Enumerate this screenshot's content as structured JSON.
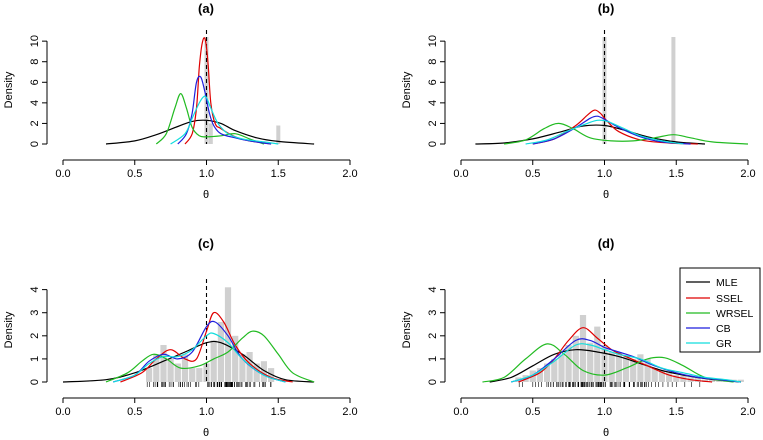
{
  "chart_data": [
    {
      "type": "line",
      "title": "(a)",
      "xlabel": "θ",
      "ylabel": "Density",
      "xlim": [
        0.0,
        2.0
      ],
      "ylim": [
        0,
        10.5
      ],
      "xticks": [
        "0.0",
        "0.5",
        "1.0",
        "1.5",
        "2.0"
      ],
      "yticks": [
        "0",
        "2",
        "4",
        "6",
        "8",
        "10"
      ],
      "reference_line_x": 1.0,
      "histogram": {
        "x": [
          1.0,
          1.03,
          1.5
        ],
        "heights": [
          10.4,
          2.0,
          1.8
        ]
      },
      "series": [
        {
          "name": "MLE",
          "x": [
            0.3,
            0.5,
            0.65,
            0.8,
            0.9,
            1.0,
            1.1,
            1.2,
            1.35,
            1.5,
            1.75
          ],
          "values": [
            0.0,
            0.3,
            0.9,
            1.7,
            2.2,
            2.3,
            2.0,
            1.3,
            0.6,
            0.25,
            0.0
          ]
        },
        {
          "name": "SSEL",
          "x": [
            0.85,
            0.9,
            0.93,
            0.95,
            0.97,
            0.99,
            1.01,
            1.03,
            1.06,
            1.1,
            1.2,
            1.3,
            1.45
          ],
          "values": [
            0.0,
            1.0,
            3.5,
            7.5,
            9.8,
            10.2,
            8.0,
            4.0,
            2.0,
            1.5,
            0.7,
            0.3,
            0.0
          ]
        },
        {
          "name": "WRSEL",
          "x": [
            0.65,
            0.72,
            0.78,
            0.82,
            0.86,
            0.9,
            0.95,
            1.0,
            1.1,
            1.2,
            1.3,
            1.4
          ],
          "values": [
            0.0,
            1.0,
            3.5,
            4.9,
            3.5,
            1.6,
            0.8,
            0.7,
            0.8,
            1.0,
            0.5,
            0.0
          ]
        },
        {
          "name": "CB",
          "x": [
            0.8,
            0.86,
            0.9,
            0.93,
            0.96,
            0.99,
            1.02,
            1.05,
            1.1,
            1.2,
            1.3,
            1.45
          ],
          "values": [
            0.0,
            1.0,
            3.0,
            6.0,
            6.5,
            5.0,
            3.0,
            1.8,
            1.0,
            0.6,
            0.3,
            0.0
          ]
        },
        {
          "name": "GR",
          "x": [
            0.75,
            0.85,
            0.9,
            0.95,
            0.98,
            1.0,
            1.03,
            1.08,
            1.15,
            1.25,
            1.4,
            1.5
          ],
          "values": [
            0.0,
            1.0,
            2.5,
            4.0,
            4.6,
            4.5,
            3.5,
            2.0,
            1.0,
            0.5,
            0.2,
            0.0
          ]
        }
      ]
    },
    {
      "type": "line",
      "title": "(b)",
      "xlabel": "θ",
      "ylabel": "Density",
      "xlim": [
        0.0,
        2.0
      ],
      "ylim": [
        0,
        10.5
      ],
      "xticks": [
        "0.0",
        "0.5",
        "1.0",
        "1.5",
        "2.0"
      ],
      "yticks": [
        "0",
        "2",
        "4",
        "6",
        "8",
        "10"
      ],
      "reference_line_x": 1.0,
      "histogram": {
        "x": [
          1.0,
          1.48
        ],
        "heights": [
          10.4,
          10.4
        ]
      },
      "series": [
        {
          "name": "MLE",
          "x": [
            0.1,
            0.3,
            0.5,
            0.7,
            0.85,
            1.0,
            1.15,
            1.3,
            1.5,
            1.7
          ],
          "values": [
            0.0,
            0.1,
            0.5,
            1.2,
            1.75,
            1.8,
            1.3,
            0.7,
            0.2,
            0.0
          ]
        },
        {
          "name": "SSEL",
          "x": [
            0.5,
            0.65,
            0.8,
            0.88,
            0.93,
            0.97,
            1.02,
            1.1,
            1.25,
            1.45,
            1.65
          ],
          "values": [
            0.0,
            0.5,
            1.8,
            2.8,
            3.3,
            3.0,
            2.2,
            1.2,
            0.4,
            0.1,
            0.0
          ]
        },
        {
          "name": "WRSEL",
          "x": [
            0.3,
            0.45,
            0.58,
            0.68,
            0.78,
            0.9,
            1.05,
            1.2,
            1.35,
            1.48,
            1.6,
            1.75,
            2.0
          ],
          "values": [
            0.0,
            0.4,
            1.5,
            2.0,
            1.5,
            0.6,
            0.3,
            0.3,
            0.6,
            0.9,
            0.6,
            0.2,
            0.0
          ]
        },
        {
          "name": "CB",
          "x": [
            0.5,
            0.65,
            0.8,
            0.9,
            0.95,
            1.0,
            1.1,
            1.25,
            1.4,
            1.6
          ],
          "values": [
            0.0,
            0.5,
            1.6,
            2.5,
            2.7,
            2.4,
            1.6,
            0.7,
            0.2,
            0.0
          ]
        },
        {
          "name": "GR",
          "x": [
            0.45,
            0.6,
            0.75,
            0.88,
            0.95,
            1.02,
            1.12,
            1.25,
            1.4,
            1.55
          ],
          "values": [
            0.0,
            0.4,
            1.3,
            2.0,
            2.3,
            2.2,
            1.6,
            0.8,
            0.3,
            0.0
          ]
        }
      ]
    },
    {
      "type": "line",
      "title": "(c)",
      "xlabel": "θ",
      "ylabel": "Density",
      "xlim": [
        0.0,
        2.0
      ],
      "ylim": [
        0,
        4.2
      ],
      "xticks": [
        "0.0",
        "0.5",
        "1.0",
        "1.5",
        "2.0"
      ],
      "yticks": [
        "0",
        "1",
        "2",
        "3",
        "4"
      ],
      "reference_line_x": 1.0,
      "rug": true,
      "histogram": {
        "x": [
          0.6,
          0.65,
          0.7,
          0.75,
          0.8,
          0.85,
          0.9,
          0.95,
          1.0,
          1.05,
          1.1,
          1.15,
          1.2,
          1.25,
          1.3,
          1.35,
          1.4,
          1.45
        ],
        "heights": [
          0.6,
          1.2,
          1.6,
          1.0,
          0.8,
          1.2,
          0.6,
          0.6,
          0.8,
          1.8,
          2.6,
          4.1,
          2.0,
          1.2,
          1.3,
          0.8,
          0.9,
          0.6
        ]
      },
      "series": [
        {
          "name": "MLE",
          "x": [
            0.0,
            0.3,
            0.5,
            0.7,
            0.85,
            1.0,
            1.1,
            1.25,
            1.4,
            1.55,
            1.75
          ],
          "values": [
            0.0,
            0.1,
            0.4,
            0.9,
            1.3,
            1.7,
            1.7,
            1.2,
            0.5,
            0.1,
            0.0
          ]
        },
        {
          "name": "SSEL",
          "x": [
            0.4,
            0.55,
            0.65,
            0.75,
            0.85,
            0.93,
            1.0,
            1.05,
            1.12,
            1.2,
            1.3,
            1.45,
            1.6
          ],
          "values": [
            0.0,
            0.4,
            1.0,
            1.4,
            1.0,
            1.0,
            2.2,
            3.0,
            2.6,
            1.6,
            0.8,
            0.2,
            0.0
          ]
        },
        {
          "name": "WRSEL",
          "x": [
            0.3,
            0.45,
            0.55,
            0.63,
            0.72,
            0.82,
            0.95,
            1.05,
            1.15,
            1.25,
            1.32,
            1.4,
            1.5,
            1.6,
            1.75
          ],
          "values": [
            0.0,
            0.4,
            0.9,
            1.2,
            1.0,
            0.6,
            0.7,
            1.0,
            1.3,
            1.9,
            2.2,
            2.0,
            1.2,
            0.4,
            0.0
          ]
        },
        {
          "name": "CB",
          "x": [
            0.35,
            0.5,
            0.6,
            0.7,
            0.8,
            0.9,
            1.0,
            1.06,
            1.15,
            1.25,
            1.4,
            1.55
          ],
          "values": [
            0.0,
            0.3,
            0.9,
            1.2,
            1.0,
            1.3,
            2.4,
            2.6,
            2.0,
            1.0,
            0.3,
            0.0
          ]
        },
        {
          "name": "GR",
          "x": [
            0.35,
            0.5,
            0.6,
            0.7,
            0.8,
            0.9,
            1.0,
            1.05,
            1.15,
            1.25,
            1.4,
            1.55
          ],
          "values": [
            0.0,
            0.3,
            0.8,
            1.1,
            1.1,
            1.4,
            2.0,
            2.1,
            1.7,
            1.0,
            0.3,
            0.0
          ]
        }
      ]
    },
    {
      "type": "line",
      "title": "(d)",
      "xlabel": "θ",
      "ylabel": "Density",
      "xlim": [
        0.0,
        2.0
      ],
      "ylim": [
        0,
        4.2
      ],
      "xticks": [
        "0.0",
        "0.5",
        "1.0",
        "1.5",
        "2.0"
      ],
      "yticks": [
        "0",
        "1",
        "2",
        "3",
        "4"
      ],
      "reference_line_x": 1.0,
      "rug": true,
      "histogram": {
        "x": [
          0.4,
          0.45,
          0.5,
          0.55,
          0.6,
          0.65,
          0.7,
          0.75,
          0.8,
          0.85,
          0.9,
          0.95,
          1.0,
          1.05,
          1.1,
          1.15,
          1.2,
          1.25,
          1.3,
          1.35,
          1.4,
          1.45,
          1.5,
          1.55,
          1.6,
          1.65,
          1.7,
          1.75,
          1.8,
          1.85,
          1.9,
          1.95
        ],
        "heights": [
          0.2,
          0.3,
          0.5,
          0.6,
          0.8,
          1.0,
          1.2,
          1.6,
          2.0,
          2.9,
          1.7,
          2.4,
          1.6,
          1.3,
          1.3,
          1.1,
          1.0,
          1.2,
          1.0,
          0.6,
          0.5,
          0.4,
          0.3,
          0.3,
          0.2,
          0.2,
          0.1,
          0.1,
          0.1,
          0.1,
          0.1,
          0.1
        ]
      },
      "series": [
        {
          "name": "MLE",
          "x": [
            0.2,
            0.35,
            0.5,
            0.65,
            0.8,
            0.95,
            1.1,
            1.25,
            1.4,
            1.55,
            1.7,
            1.85,
            1.95
          ],
          "values": [
            0.0,
            0.2,
            0.7,
            1.2,
            1.4,
            1.3,
            1.1,
            0.8,
            0.5,
            0.3,
            0.15,
            0.05,
            0.0
          ]
        },
        {
          "name": "SSEL",
          "x": [
            0.4,
            0.55,
            0.65,
            0.75,
            0.85,
            0.95,
            1.05,
            1.15,
            1.3,
            1.45,
            1.6,
            1.75
          ],
          "values": [
            0.0,
            0.4,
            1.0,
            1.8,
            2.35,
            1.9,
            1.4,
            1.1,
            0.7,
            0.3,
            0.1,
            0.0
          ]
        },
        {
          "name": "WRSEL",
          "x": [
            0.15,
            0.3,
            0.45,
            0.6,
            0.72,
            0.85,
            1.0,
            1.15,
            1.3,
            1.42,
            1.55,
            1.7,
            1.9
          ],
          "values": [
            0.0,
            0.2,
            1.0,
            1.65,
            1.2,
            0.5,
            0.3,
            0.6,
            1.0,
            1.05,
            0.7,
            0.2,
            0.0
          ]
        },
        {
          "name": "CB",
          "x": [
            0.35,
            0.5,
            0.65,
            0.8,
            0.9,
            1.0,
            1.1,
            1.2,
            1.35,
            1.5,
            1.65,
            1.8,
            1.95
          ],
          "values": [
            0.0,
            0.3,
            1.0,
            1.8,
            1.8,
            1.5,
            1.3,
            1.1,
            0.7,
            0.4,
            0.2,
            0.1,
            0.0
          ]
        },
        {
          "name": "GR",
          "x": [
            0.35,
            0.5,
            0.65,
            0.8,
            0.9,
            1.0,
            1.1,
            1.25,
            1.4,
            1.55,
            1.7,
            1.85,
            1.95
          ],
          "values": [
            0.0,
            0.3,
            0.9,
            1.6,
            1.6,
            1.4,
            1.2,
            1.0,
            0.6,
            0.4,
            0.2,
            0.1,
            0.0
          ]
        }
      ]
    }
  ],
  "legend": {
    "placement": "top-right of panel (d)",
    "entries": [
      {
        "label": "MLE",
        "color": "#000000"
      },
      {
        "label": "SSEL",
        "color": "#df0000"
      },
      {
        "label": "WRSEL",
        "color": "#22bb22"
      },
      {
        "label": "CB",
        "color": "#1f1fdd"
      },
      {
        "label": "GR",
        "color": "#11dddd"
      }
    ]
  },
  "colors": {
    "MLE": "#000000",
    "SSEL": "#df0000",
    "WRSEL": "#22bb22",
    "CB": "#1f1fdd",
    "GR": "#11dddd",
    "histogram": "#d0d0d0"
  }
}
